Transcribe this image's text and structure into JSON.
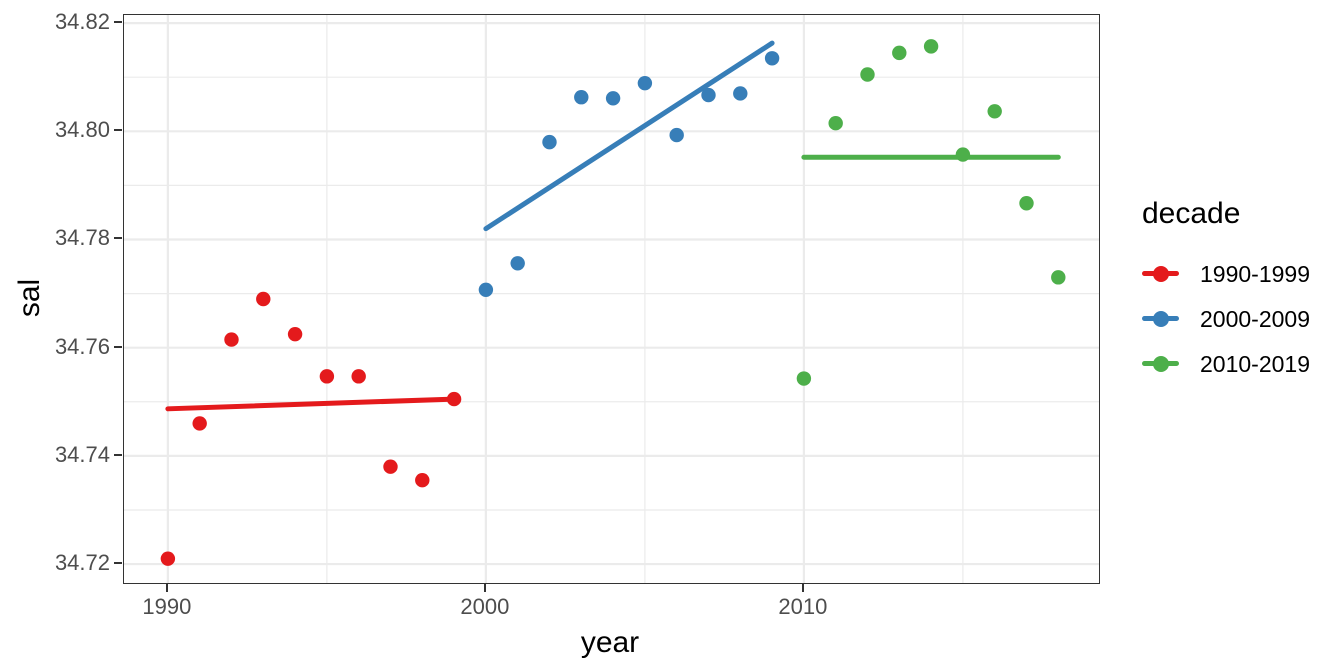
{
  "figure": {
    "background": "#ffffff",
    "panel_border_color": "#333333",
    "grid_color": "#ebebeb",
    "axis_text_color": "#4d4d4d",
    "title_text_color": "#000000"
  },
  "chart_data": {
    "type": "scatter",
    "title": "",
    "xlabel": "year",
    "ylabel": "sal",
    "grid": true,
    "legend": {
      "title": "decade",
      "position": "right",
      "entries": [
        "1990-1999",
        "2000-2009",
        "2010-2019"
      ]
    },
    "x_domain": [
      1988.62,
      2019.28
    ],
    "y_domain": [
      34.7165,
      34.8215
    ],
    "x_ticks": [
      {
        "value": 1990,
        "label": "1990"
      },
      {
        "value": 2000,
        "label": "2000"
      },
      {
        "value": 2010,
        "label": "2010"
      }
    ],
    "x_minor_ticks": [
      1995,
      2005,
      2015
    ],
    "y_ticks": [
      {
        "value": 34.72,
        "label": "34.72"
      },
      {
        "value": 34.74,
        "label": "34.74"
      },
      {
        "value": 34.76,
        "label": "34.76"
      },
      {
        "value": 34.78,
        "label": "34.78"
      },
      {
        "value": 34.8,
        "label": "34.80"
      },
      {
        "value": 34.82,
        "label": "34.82"
      }
    ],
    "y_minor_ticks": [
      34.73,
      34.75,
      34.77,
      34.79,
      34.81
    ],
    "series": [
      {
        "name": "1990-1999",
        "color": "#E41A1C",
        "x": [
          1990,
          1991,
          1992,
          1993,
          1994,
          1995,
          1996,
          1997,
          1998,
          1999
        ],
        "y": [
          34.721,
          34.746,
          34.7615,
          34.769,
          34.7625,
          34.7547,
          34.7547,
          34.738,
          34.7355,
          34.7505
        ],
        "trend": {
          "x": [
            1990,
            1999
          ],
          "y": [
            34.7487,
            34.7505
          ]
        }
      },
      {
        "name": "2000-2009",
        "color": "#377EB8",
        "x": [
          2000,
          2001,
          2002,
          2003,
          2004,
          2005,
          2006,
          2007,
          2008,
          2009
        ],
        "y": [
          34.7707,
          34.7756,
          34.798,
          34.8063,
          34.8061,
          34.8089,
          34.7993,
          34.8067,
          34.807,
          34.8135
        ],
        "trend": {
          "x": [
            2000,
            2009
          ],
          "y": [
            34.782,
            34.8163
          ]
        }
      },
      {
        "name": "2010-2019",
        "color": "#4DAF4A",
        "x": [
          2010,
          2011,
          2012,
          2013,
          2014,
          2015,
          2016,
          2017,
          2018
        ],
        "y": [
          34.7543,
          34.8015,
          34.8105,
          34.8145,
          34.8157,
          34.7957,
          34.8037,
          34.7867,
          34.773
        ],
        "trend": {
          "x": [
            2010,
            2018
          ],
          "y": [
            34.7952,
            34.7952
          ]
        }
      }
    ],
    "point_radius": 7.2,
    "trend_line_width": 5
  }
}
